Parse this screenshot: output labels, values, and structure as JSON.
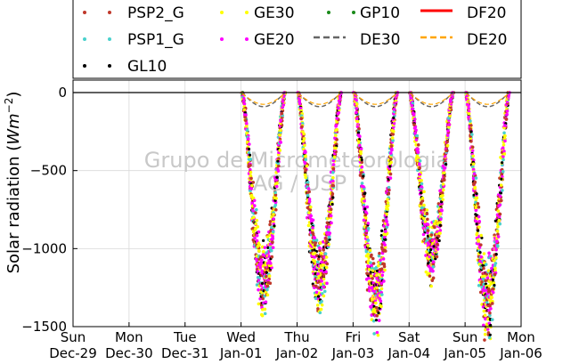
{
  "chart_data": {
    "type": "scatter",
    "ylabel": "Solar radiation ($Wm^{-2}$)",
    "ylabel_display": {
      "base": "Solar radiation (",
      "unit": "Wm",
      "exp": "−2",
      "close": ")"
    },
    "ylim": [
      -1500,
      80
    ],
    "yticks": [
      0,
      -500,
      -1000,
      -1500
    ],
    "ytick_labels": [
      "0",
      "−500",
      "−1000",
      "−1500"
    ],
    "xlim": [
      "2019-12-29",
      "2020-01-06"
    ],
    "xticks": [
      {
        "day": "Sun",
        "date": "Dec-29"
      },
      {
        "day": "Mon",
        "date": "Dec-30"
      },
      {
        "day": "Tue",
        "date": "Dec-31"
      },
      {
        "day": "Wed",
        "date": "Jan-01"
      },
      {
        "day": "Thu",
        "date": "Jan-02"
      },
      {
        "day": "Fri",
        "date": "Jan-03"
      },
      {
        "day": "Sat",
        "date": "Jan-04"
      },
      {
        "day": "Sun",
        "date": "Jan-05"
      },
      {
        "day": "Mon",
        "date": "Jan-06"
      }
    ],
    "grid": true,
    "legend_placement": "top",
    "watermark": [
      "Grupo de Micrometeorologia",
      "IAG / USP"
    ],
    "series": [
      {
        "name": "PSP2_G",
        "style": "dots",
        "color": "#c0392b"
      },
      {
        "name": "PSP1_G",
        "style": "dots",
        "color": "#48d1cc"
      },
      {
        "name": "GL10",
        "style": "dots",
        "color": "#000000"
      },
      {
        "name": "GE30",
        "style": "dots",
        "color": "#ffff00"
      },
      {
        "name": "GE20",
        "style": "dots",
        "color": "#ff00ff"
      },
      {
        "name": "GP10",
        "style": "dots",
        "color": "#1a8a1a"
      },
      {
        "name": "DE30",
        "style": "dashed",
        "color": "#666666"
      },
      {
        "name": "DF20",
        "style": "solid",
        "color": "#ff0000"
      },
      {
        "name": "DE20",
        "style": "dashed",
        "color": "#ffa500"
      }
    ],
    "daily_minimum_approx": [
      {
        "date": "2020-01-01",
        "min": -1210
      },
      {
        "date": "2020-01-02",
        "min": -1215
      },
      {
        "date": "2020-01-03",
        "min": -1300
      },
      {
        "date": "2020-01-04",
        "min": -1030
      },
      {
        "date": "2020-01-05",
        "min": -1330
      }
    ]
  }
}
